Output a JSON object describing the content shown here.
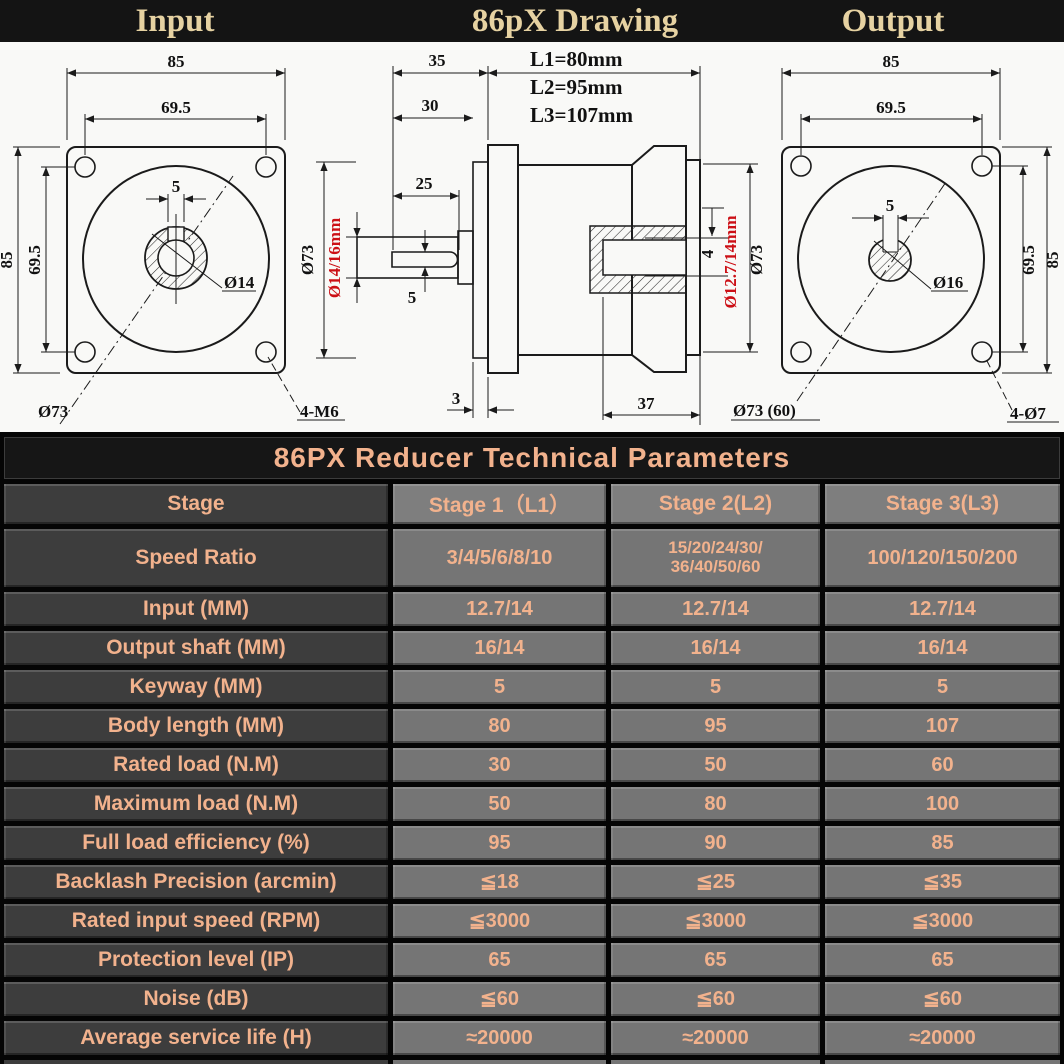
{
  "header": {
    "left": "Input",
    "center": "86pX Drawing",
    "right": "Output"
  },
  "drawing": {
    "input_view": {
      "width": "85",
      "bolt_spacing_h": "69.5",
      "height": "85",
      "bolt_spacing_v": "69.5",
      "keyway": "5",
      "shaft": "Ø14",
      "pilot": "Ø73",
      "mounting_holes": "4-M6"
    },
    "side_view": {
      "shaft_len": "35",
      "len2": "30",
      "keyway_len": "25",
      "keyway_width": "5",
      "flange_dia": "Ø73",
      "input_bore": "Ø14/16mm",
      "lengths": [
        "L1=80mm",
        "L2=95mm",
        "L3=107mm"
      ],
      "spacer": "3",
      "output_boss_len": "37",
      "output_boss_dia": "Ø73",
      "output_bore": "Ø12.7/14mm",
      "keyway_depth": "4"
    },
    "output_view": {
      "width": "85",
      "bolt_spacing_h": "69.5",
      "height": "85",
      "bolt_spacing_v": "69.5",
      "keyway": "5",
      "shaft": "Ø16",
      "pilot": "Ø73 (60)",
      "mounting_holes": "4-Ø7"
    },
    "colors": {
      "accent_red": "#cc1016",
      "line": "#1b1b1b"
    }
  },
  "table": {
    "title": "86PX Reducer Technical Parameters",
    "columns": [
      "Stage",
      "Stage 1（L1）",
      "Stage 2(L2)",
      "Stage 3(L3)"
    ],
    "rows": [
      {
        "label": "Speed Ratio",
        "values": [
          "3/4/5/6/8/10",
          "15/20/24/30/\n36/40/50/60",
          "100/120/150/200"
        ]
      },
      {
        "label": "Input (MM)",
        "values": [
          "12.7/14",
          "12.7/14",
          "12.7/14"
        ]
      },
      {
        "label": "Output shaft (MM)",
        "values": [
          "16/14",
          "16/14",
          "16/14"
        ]
      },
      {
        "label": "Keyway (MM)",
        "values": [
          "5",
          "5",
          "5"
        ]
      },
      {
        "label": "Body length (MM)",
        "values": [
          "80",
          "95",
          "107"
        ]
      },
      {
        "label": "Rated load (N.M)",
        "values": [
          "30",
          "50",
          "60"
        ]
      },
      {
        "label": "Maximum load (N.M)",
        "values": [
          "50",
          "80",
          "100"
        ]
      },
      {
        "label": "Full load efficiency (%)",
        "values": [
          "95",
          "90",
          "85"
        ]
      },
      {
        "label": "Backlash Precision (arcmin)",
        "values": [
          "≦18",
          "≦25",
          "≦35"
        ]
      },
      {
        "label": "Rated input speed (RPM)",
        "values": [
          "≦3000",
          "≦3000",
          "≦3000"
        ]
      },
      {
        "label": "Protection level (IP)",
        "values": [
          "65",
          "65",
          "65"
        ]
      },
      {
        "label": "Noise (dB)",
        "values": [
          "≦60",
          "≦60",
          "≦60"
        ]
      },
      {
        "label": "Average service life (H)",
        "values": [
          "≈20000",
          "≈20000",
          "≈20000"
        ]
      }
    ]
  }
}
